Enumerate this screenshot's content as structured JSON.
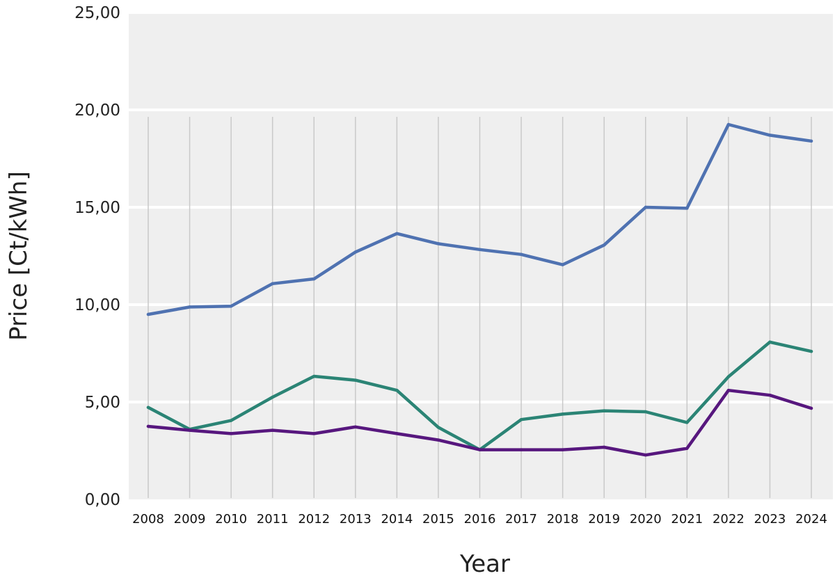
{
  "chart_data": {
    "type": "line",
    "title": "",
    "xlabel": "Year",
    "ylabel": "Price [Ct/kWh]",
    "ylim": [
      0,
      25
    ],
    "y_ticks": [
      "0,00",
      "5,00",
      "10,00",
      "15,00",
      "20,00",
      "25,00"
    ],
    "y_tick_values": [
      0,
      5,
      10,
      15,
      20,
      25
    ],
    "grid": true,
    "legend": "none",
    "background_color": "#efefef",
    "categories": [
      "2008",
      "2009",
      "2010",
      "2011",
      "2012",
      "2013",
      "2014",
      "2015",
      "2016",
      "2017",
      "2018",
      "2019",
      "2020",
      "2021",
      "2022",
      "2023",
      "2024"
    ],
    "series": [
      {
        "color": "#4f72b1",
        "values": [
          9.5,
          9.88,
          9.92,
          11.08,
          11.32,
          12.7,
          13.65,
          13.13,
          12.83,
          12.58,
          12.05,
          13.06,
          15.0,
          14.95,
          19.25,
          18.7,
          18.4
        ]
      },
      {
        "color": "#2b8475",
        "values": [
          4.72,
          3.6,
          4.05,
          5.25,
          6.32,
          6.12,
          5.6,
          3.7,
          2.55,
          4.1,
          4.38,
          4.55,
          4.5,
          3.95,
          6.3,
          8.08,
          7.6
        ]
      },
      {
        "color": "#57177e",
        "values": [
          3.75,
          3.55,
          3.38,
          3.55,
          3.38,
          3.72,
          3.38,
          3.05,
          2.55,
          2.55,
          2.55,
          2.68,
          2.28,
          2.62,
          5.6,
          5.35,
          4.68
        ]
      }
    ]
  }
}
